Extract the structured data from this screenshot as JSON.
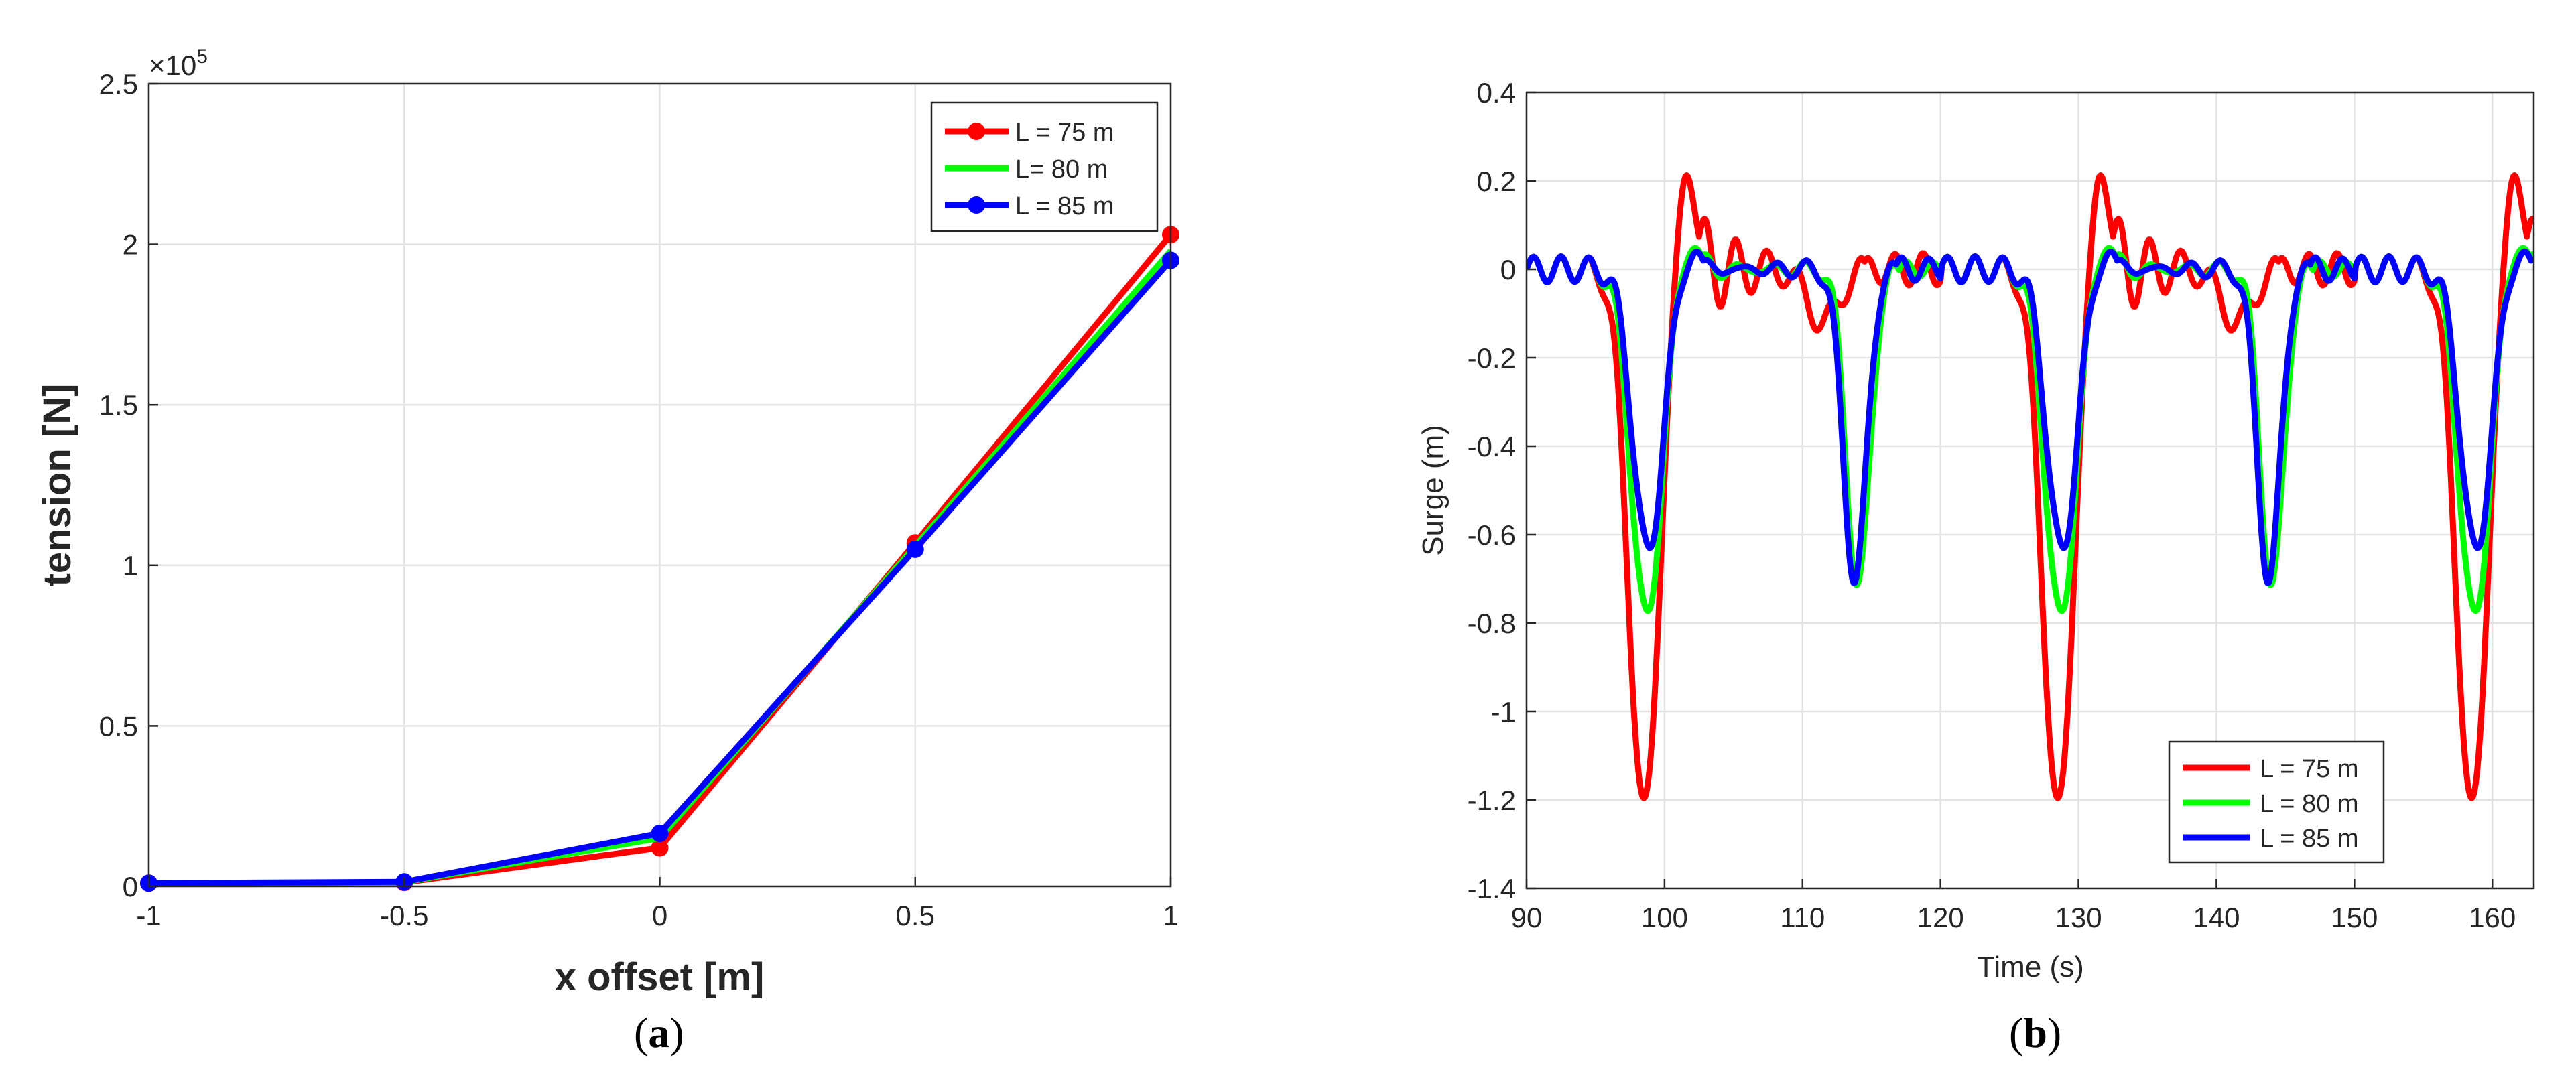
{
  "chart_data": [
    {
      "type": "line",
      "panel_label_parts": [
        "(",
        "a",
        ")"
      ],
      "xlabel": "x offset [m]",
      "ylabel": "tension [N]",
      "y_multiplier": "×10",
      "y_exponent": "5",
      "xlim": [
        -1,
        1
      ],
      "ylim": [
        0,
        2.5
      ],
      "xticks": [
        -1,
        -0.5,
        0,
        0.5,
        1
      ],
      "xtick_labels": [
        "-1",
        "-0.5",
        "0",
        "0.5",
        "1"
      ],
      "yticks": [
        0,
        0.5,
        1,
        1.5,
        2,
        2.5
      ],
      "ytick_labels": [
        "0",
        "0.5",
        "1",
        "1.5",
        "2",
        "2.5"
      ],
      "grid": true,
      "legend_position": "top-right",
      "x": [
        -1,
        -0.5,
        0,
        0.5,
        1
      ],
      "series": [
        {
          "name": "L = 75 m",
          "color": "#ff0000",
          "markers": true,
          "values": [
            0.01,
            0.012,
            0.12,
            1.07,
            2.03
          ]
        },
        {
          "name": "L= 80 m",
          "color": "#00ff00",
          "markers": false,
          "values": [
            0.01,
            0.013,
            0.15,
            1.06,
            1.98
          ]
        },
        {
          "name": "L = 85 m",
          "color": "#0000ff",
          "markers": true,
          "values": [
            0.01,
            0.014,
            0.165,
            1.05,
            1.95
          ]
        }
      ]
    },
    {
      "type": "line",
      "panel_label_parts": [
        "(",
        "b",
        ")"
      ],
      "xlabel": "Time (s)",
      "ylabel": "Surge (m)",
      "xlim": [
        90,
        163
      ],
      "ylim": [
        -1.4,
        0.4
      ],
      "xticks": [
        90,
        100,
        110,
        120,
        130,
        140,
        150,
        160
      ],
      "xtick_labels": [
        "90",
        "100",
        "110",
        "120",
        "130",
        "140",
        "150",
        "160"
      ],
      "yticks": [
        -1.4,
        -1.2,
        -1,
        -0.8,
        -0.6,
        -0.4,
        -0.2,
        0,
        0.2,
        0.4
      ],
      "ytick_labels": [
        "-1.4",
        "-1.2",
        "-1",
        "-0.8",
        "-0.6",
        "-0.4",
        "-0.2",
        "0",
        "0.2",
        "0.4"
      ],
      "grid": true,
      "legend_position": "bottom-right",
      "period_s": 30,
      "series": [
        {
          "name": "L = 75 m",
          "color": "#ff0000",
          "dip_a_depth": -1.22,
          "dip_a_time": 98.5,
          "dip_b_depth": -0.12,
          "dip_b_time": 111.5,
          "overshoot": 0.26
        },
        {
          "name": "L = 80 m",
          "color": "#00ff00",
          "dip_a_depth": -0.79,
          "dip_a_time": 98.7,
          "dip_b_depth": -0.72,
          "dip_b_time": 114.0,
          "overshoot": 0.06
        },
        {
          "name": "L = 85 m",
          "color": "#0000ff",
          "dip_a_depth": -0.64,
          "dip_a_time": 98.8,
          "dip_b_depth": -0.7,
          "dip_b_time": 113.8,
          "overshoot": 0.04
        }
      ]
    }
  ]
}
